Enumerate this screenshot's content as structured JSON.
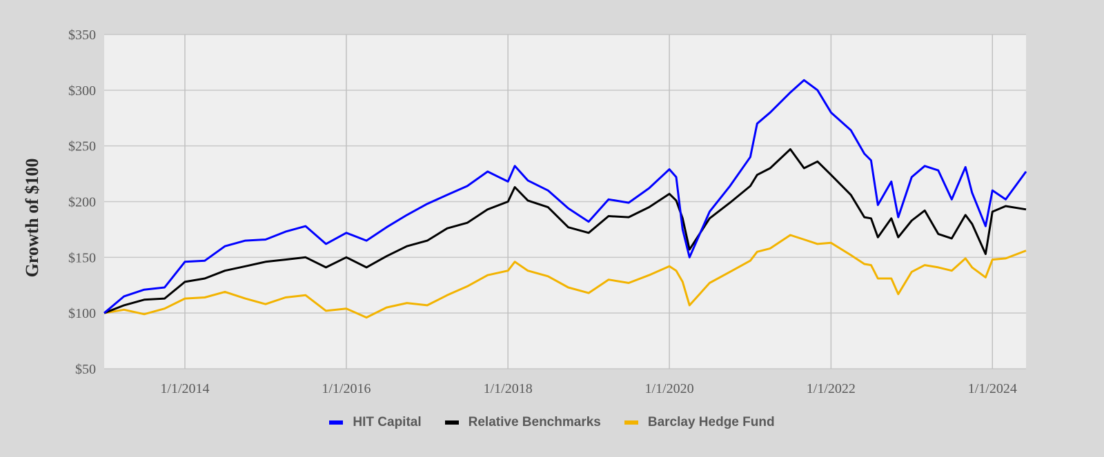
{
  "chart_data": {
    "type": "line",
    "title": "",
    "xlabel": "",
    "ylabel": "Growth of $100",
    "x_range": [
      "2013-01-01",
      "2024-06-01"
    ],
    "ylim": [
      50,
      350
    ],
    "y_ticks": [
      50,
      100,
      150,
      200,
      250,
      300,
      350
    ],
    "y_tick_labels": [
      "$50",
      "$100",
      "$150",
      "$200",
      "$250",
      "$300",
      "$350"
    ],
    "x_ticks": [
      "2014-01-01",
      "2016-01-01",
      "2018-01-01",
      "2020-01-01",
      "2022-01-01",
      "2024-01-01"
    ],
    "x_tick_labels": [
      "1/1/2014",
      "1/1/2016",
      "1/1/2018",
      "1/1/2020",
      "1/1/2022",
      "1/1/2024"
    ],
    "grid": true,
    "legend_position": "bottom",
    "series": [
      {
        "name": "HIT Capital",
        "color": "#0000ff",
        "points": [
          [
            "2013-01-01",
            100
          ],
          [
            "2013-04-01",
            115
          ],
          [
            "2013-07-01",
            121
          ],
          [
            "2013-10-01",
            123
          ],
          [
            "2014-01-01",
            146
          ],
          [
            "2014-04-01",
            147
          ],
          [
            "2014-07-01",
            160
          ],
          [
            "2014-10-01",
            165
          ],
          [
            "2015-01-01",
            166
          ],
          [
            "2015-04-01",
            173
          ],
          [
            "2015-07-01",
            178
          ],
          [
            "2015-10-01",
            162
          ],
          [
            "2016-01-01",
            172
          ],
          [
            "2016-04-01",
            165
          ],
          [
            "2016-07-01",
            177
          ],
          [
            "2016-10-01",
            188
          ],
          [
            "2017-01-01",
            198
          ],
          [
            "2017-04-01",
            206
          ],
          [
            "2017-07-01",
            214
          ],
          [
            "2017-10-01",
            227
          ],
          [
            "2018-01-01",
            218
          ],
          [
            "2018-02-01",
            232
          ],
          [
            "2018-04-01",
            219
          ],
          [
            "2018-07-01",
            210
          ],
          [
            "2018-10-01",
            194
          ],
          [
            "2019-01-01",
            182
          ],
          [
            "2019-04-01",
            202
          ],
          [
            "2019-07-01",
            199
          ],
          [
            "2019-10-01",
            212
          ],
          [
            "2020-01-01",
            229
          ],
          [
            "2020-02-01",
            222
          ],
          [
            "2020-03-01",
            175
          ],
          [
            "2020-04-01",
            150
          ],
          [
            "2020-07-01",
            191
          ],
          [
            "2020-10-01",
            214
          ],
          [
            "2021-01-01",
            240
          ],
          [
            "2021-02-01",
            270
          ],
          [
            "2021-04-01",
            280
          ],
          [
            "2021-07-01",
            298
          ],
          [
            "2021-09-01",
            309
          ],
          [
            "2021-11-01",
            300
          ],
          [
            "2022-01-01",
            280
          ],
          [
            "2022-04-01",
            264
          ],
          [
            "2022-06-01",
            243
          ],
          [
            "2022-07-01",
            237
          ],
          [
            "2022-08-01",
            197
          ],
          [
            "2022-10-01",
            218
          ],
          [
            "2022-11-01",
            186
          ],
          [
            "2023-01-01",
            222
          ],
          [
            "2023-03-01",
            232
          ],
          [
            "2023-05-01",
            228
          ],
          [
            "2023-07-01",
            202
          ],
          [
            "2023-09-01",
            231
          ],
          [
            "2023-10-01",
            208
          ],
          [
            "2023-12-01",
            178
          ],
          [
            "2024-01-01",
            210
          ],
          [
            "2024-03-01",
            202
          ],
          [
            "2024-06-01",
            227
          ]
        ]
      },
      {
        "name": "Relative Benchmarks",
        "color": "#000000",
        "points": [
          [
            "2013-01-01",
            100
          ],
          [
            "2013-04-01",
            107
          ],
          [
            "2013-07-01",
            112
          ],
          [
            "2013-10-01",
            113
          ],
          [
            "2014-01-01",
            128
          ],
          [
            "2014-04-01",
            131
          ],
          [
            "2014-07-01",
            138
          ],
          [
            "2014-10-01",
            142
          ],
          [
            "2015-01-01",
            146
          ],
          [
            "2015-04-01",
            148
          ],
          [
            "2015-07-01",
            150
          ],
          [
            "2015-10-01",
            141
          ],
          [
            "2016-01-01",
            150
          ],
          [
            "2016-04-01",
            141
          ],
          [
            "2016-07-01",
            151
          ],
          [
            "2016-10-01",
            160
          ],
          [
            "2017-01-01",
            165
          ],
          [
            "2017-04-01",
            176
          ],
          [
            "2017-07-01",
            181
          ],
          [
            "2017-10-01",
            193
          ],
          [
            "2018-01-01",
            200
          ],
          [
            "2018-02-01",
            213
          ],
          [
            "2018-04-01",
            201
          ],
          [
            "2018-07-01",
            195
          ],
          [
            "2018-10-01",
            177
          ],
          [
            "2019-01-01",
            172
          ],
          [
            "2019-04-01",
            187
          ],
          [
            "2019-07-01",
            186
          ],
          [
            "2019-10-01",
            195
          ],
          [
            "2020-01-01",
            207
          ],
          [
            "2020-02-01",
            201
          ],
          [
            "2020-03-01",
            185
          ],
          [
            "2020-04-01",
            157
          ],
          [
            "2020-07-01",
            185
          ],
          [
            "2020-10-01",
            199
          ],
          [
            "2021-01-01",
            214
          ],
          [
            "2021-02-01",
            224
          ],
          [
            "2021-04-01",
            230
          ],
          [
            "2021-07-01",
            247
          ],
          [
            "2021-09-01",
            230
          ],
          [
            "2021-11-01",
            236
          ],
          [
            "2022-01-01",
            224
          ],
          [
            "2022-04-01",
            206
          ],
          [
            "2022-06-01",
            186
          ],
          [
            "2022-07-01",
            185
          ],
          [
            "2022-08-01",
            168
          ],
          [
            "2022-10-01",
            185
          ],
          [
            "2022-11-01",
            168
          ],
          [
            "2023-01-01",
            183
          ],
          [
            "2023-03-01",
            192
          ],
          [
            "2023-05-01",
            171
          ],
          [
            "2023-07-01",
            167
          ],
          [
            "2023-09-01",
            188
          ],
          [
            "2023-10-01",
            180
          ],
          [
            "2023-12-01",
            153
          ],
          [
            "2024-01-01",
            191
          ],
          [
            "2024-03-01",
            196
          ],
          [
            "2024-06-01",
            193
          ]
        ]
      },
      {
        "name": "Barclay Hedge Fund",
        "color": "#f2b300",
        "points": [
          [
            "2013-01-01",
            100
          ],
          [
            "2013-04-01",
            103
          ],
          [
            "2013-07-01",
            99
          ],
          [
            "2013-10-01",
            104
          ],
          [
            "2014-01-01",
            113
          ],
          [
            "2014-04-01",
            114
          ],
          [
            "2014-07-01",
            119
          ],
          [
            "2014-10-01",
            113
          ],
          [
            "2015-01-01",
            108
          ],
          [
            "2015-04-01",
            114
          ],
          [
            "2015-07-01",
            116
          ],
          [
            "2015-10-01",
            102
          ],
          [
            "2016-01-01",
            104
          ],
          [
            "2016-04-01",
            96
          ],
          [
            "2016-07-01",
            105
          ],
          [
            "2016-10-01",
            109
          ],
          [
            "2017-01-01",
            107
          ],
          [
            "2017-04-01",
            116
          ],
          [
            "2017-07-01",
            124
          ],
          [
            "2017-10-01",
            134
          ],
          [
            "2018-01-01",
            138
          ],
          [
            "2018-02-01",
            146
          ],
          [
            "2018-04-01",
            138
          ],
          [
            "2018-07-01",
            133
          ],
          [
            "2018-10-01",
            123
          ],
          [
            "2019-01-01",
            118
          ],
          [
            "2019-04-01",
            130
          ],
          [
            "2019-07-01",
            127
          ],
          [
            "2019-10-01",
            134
          ],
          [
            "2020-01-01",
            142
          ],
          [
            "2020-02-01",
            138
          ],
          [
            "2020-03-01",
            128
          ],
          [
            "2020-04-01",
            107
          ],
          [
            "2020-07-01",
            127
          ],
          [
            "2020-10-01",
            137
          ],
          [
            "2021-01-01",
            147
          ],
          [
            "2021-02-01",
            155
          ],
          [
            "2021-04-01",
            158
          ],
          [
            "2021-07-01",
            170
          ],
          [
            "2021-09-01",
            166
          ],
          [
            "2021-11-01",
            162
          ],
          [
            "2022-01-01",
            163
          ],
          [
            "2022-04-01",
            152
          ],
          [
            "2022-06-01",
            144
          ],
          [
            "2022-07-01",
            143
          ],
          [
            "2022-08-01",
            131
          ],
          [
            "2022-10-01",
            131
          ],
          [
            "2022-11-01",
            117
          ],
          [
            "2023-01-01",
            137
          ],
          [
            "2023-03-01",
            143
          ],
          [
            "2023-05-01",
            141
          ],
          [
            "2023-07-01",
            138
          ],
          [
            "2023-09-01",
            149
          ],
          [
            "2023-10-01",
            141
          ],
          [
            "2023-12-01",
            132
          ],
          [
            "2024-01-01",
            148
          ],
          [
            "2024-03-01",
            149
          ],
          [
            "2024-06-01",
            156
          ]
        ]
      }
    ]
  }
}
